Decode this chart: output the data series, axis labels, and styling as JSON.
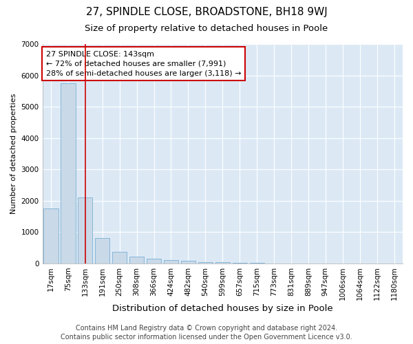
{
  "title": "27, SPINDLE CLOSE, BROADSTONE, BH18 9WJ",
  "subtitle": "Size of property relative to detached houses in Poole",
  "xlabel": "Distribution of detached houses by size in Poole",
  "ylabel": "Number of detached properties",
  "categories": [
    "17sqm",
    "75sqm",
    "133sqm",
    "191sqm",
    "250sqm",
    "308sqm",
    "366sqm",
    "424sqm",
    "482sqm",
    "540sqm",
    "599sqm",
    "657sqm",
    "715sqm",
    "773sqm",
    "831sqm",
    "889sqm",
    "947sqm",
    "1006sqm",
    "1064sqm",
    "1122sqm",
    "1180sqm"
  ],
  "values": [
    1750,
    5750,
    2100,
    800,
    375,
    225,
    150,
    100,
    75,
    50,
    30,
    20,
    10,
    5,
    4,
    3,
    2,
    2,
    1,
    1,
    1
  ],
  "bar_color": "#c9d9e8",
  "bar_edge_color": "#7bafd4",
  "vline_x": 2,
  "vline_color": "#cc0000",
  "annotation_text": "27 SPINDLE CLOSE: 143sqm\n← 72% of detached houses are smaller (7,991)\n28% of semi-detached houses are larger (3,118) →",
  "annotation_box_facecolor": "#ffffff",
  "annotation_box_edgecolor": "#cc0000",
  "ylim": [
    0,
    7000
  ],
  "yticks": [
    0,
    1000,
    2000,
    3000,
    4000,
    5000,
    6000,
    7000
  ],
  "fig_background": "#ffffff",
  "plot_bg_color": "#dce9f5",
  "grid_color": "#ffffff",
  "footer_line1": "Contains HM Land Registry data © Crown copyright and database right 2024.",
  "footer_line2": "Contains public sector information licensed under the Open Government Licence v3.0.",
  "title_fontsize": 11,
  "subtitle_fontsize": 9.5,
  "xlabel_fontsize": 9.5,
  "ylabel_fontsize": 8,
  "tick_fontsize": 7.5,
  "annot_fontsize": 8,
  "footer_fontsize": 7
}
